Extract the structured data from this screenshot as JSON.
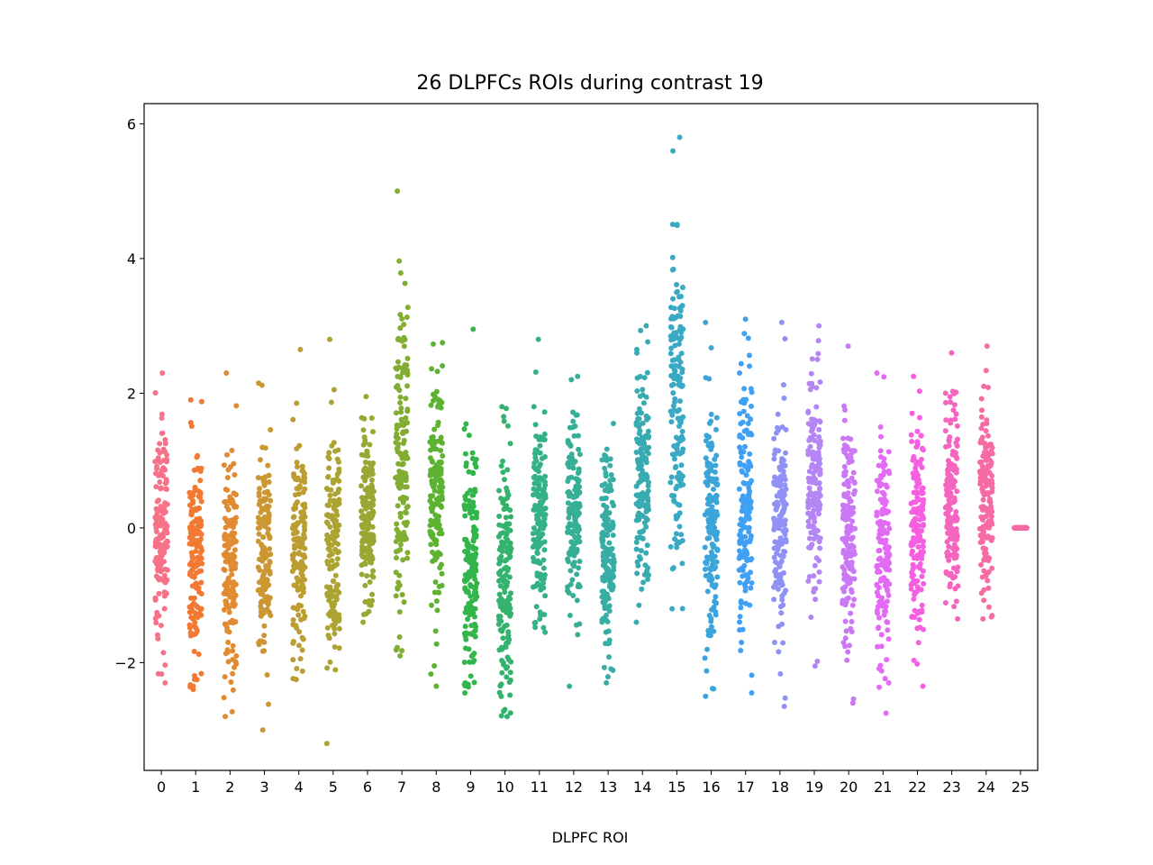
{
  "chart_data": {
    "type": "scatter",
    "subtype": "strip",
    "title": "26 DLPFCs ROIs during contrast 19",
    "xlabel": "DLPFC ROI",
    "ylabel": "",
    "categories": [
      "0",
      "1",
      "2",
      "3",
      "4",
      "5",
      "6",
      "7",
      "8",
      "9",
      "10",
      "11",
      "12",
      "13",
      "14",
      "15",
      "16",
      "17",
      "18",
      "19",
      "20",
      "21",
      "22",
      "23",
      "24",
      "25"
    ],
    "ylim": [
      -3.6,
      6.3
    ],
    "yticks": [
      -2,
      0,
      2,
      4,
      6
    ],
    "ytick_labels": [
      "−2",
      "0",
      "2",
      "4",
      "6"
    ],
    "grid": false,
    "legend": "none",
    "points_per_category": 160,
    "colors": [
      "#f77189",
      "#f37932",
      "#e08b32",
      "#cc9632",
      "#bb9d32",
      "#aba332",
      "#98a832",
      "#80ad32",
      "#5db232",
      "#32b54a",
      "#34b36e",
      "#35b186",
      "#36af96",
      "#37ada4",
      "#38abb2",
      "#3aa9c3",
      "#3ba5d9",
      "#40a0f3",
      "#8f92f4",
      "#b386f4",
      "#cb78f4",
      "#e26af4",
      "#f55fe0",
      "#f564bf",
      "#f66ba3",
      "#f66ba3"
    ],
    "summary": [
      {
        "category": "0",
        "min": -2.3,
        "max": 2.3,
        "center": 0.0,
        "spread": 0.9
      },
      {
        "category": "1",
        "min": -2.4,
        "max": 1.9,
        "center": -0.4,
        "spread": 0.85
      },
      {
        "category": "2",
        "min": -2.8,
        "max": 2.3,
        "center": -0.6,
        "spread": 0.75
      },
      {
        "category": "3",
        "min": -3.0,
        "max": 2.15,
        "center": -0.5,
        "spread": 0.8
      },
      {
        "category": "4",
        "min": -2.25,
        "max": 2.65,
        "center": -0.3,
        "spread": 0.8
      },
      {
        "category": "5",
        "min": -3.2,
        "max": 2.8,
        "center": -0.3,
        "spread": 0.85
      },
      {
        "category": "6",
        "min": -1.4,
        "max": 1.95,
        "center": 0.1,
        "spread": 0.65
      },
      {
        "category": "7",
        "min": -1.9,
        "max": 5.0,
        "center": 1.0,
        "spread": 1.3
      },
      {
        "category": "8",
        "min": -2.35,
        "max": 2.75,
        "center": 0.5,
        "spread": 0.85
      },
      {
        "category": "9",
        "min": -2.45,
        "max": 2.95,
        "center": -0.5,
        "spread": 0.85
      },
      {
        "category": "10",
        "min": -2.8,
        "max": 1.8,
        "center": -0.6,
        "spread": 0.9
      },
      {
        "category": "11",
        "min": -1.55,
        "max": 2.8,
        "center": 0.1,
        "spread": 0.65
      },
      {
        "category": "12",
        "min": -2.35,
        "max": 2.25,
        "center": 0.2,
        "spread": 0.7
      },
      {
        "category": "13",
        "min": -2.3,
        "max": 1.55,
        "center": -0.4,
        "spread": 0.7
      },
      {
        "category": "14",
        "min": -1.4,
        "max": 3.0,
        "center": 0.8,
        "spread": 0.85
      },
      {
        "category": "15",
        "min": -1.2,
        "max": 5.8,
        "center": 2.0,
        "spread": 1.4
      },
      {
        "category": "16",
        "min": -2.5,
        "max": 3.05,
        "center": 0.0,
        "spread": 0.9
      },
      {
        "category": "17",
        "min": -2.45,
        "max": 3.1,
        "center": 0.2,
        "spread": 0.9
      },
      {
        "category": "18",
        "min": -2.65,
        "max": 3.05,
        "center": 0.0,
        "spread": 0.85
      },
      {
        "category": "19",
        "min": -2.05,
        "max": 3.0,
        "center": 0.6,
        "spread": 0.8
      },
      {
        "category": "20",
        "min": -2.6,
        "max": 2.7,
        "center": -0.1,
        "spread": 0.85
      },
      {
        "category": "21",
        "min": -2.75,
        "max": 2.3,
        "center": -0.3,
        "spread": 0.8
      },
      {
        "category": "22",
        "min": -2.35,
        "max": 2.25,
        "center": 0.0,
        "spread": 0.85
      },
      {
        "category": "23",
        "min": -1.35,
        "max": 2.6,
        "center": 0.4,
        "spread": 0.7
      },
      {
        "category": "24",
        "min": -1.35,
        "max": 2.7,
        "center": 0.4,
        "spread": 0.75
      },
      {
        "category": "25",
        "min": 0.0,
        "max": 0.0,
        "center": 0.0,
        "spread": 0.0
      }
    ]
  }
}
